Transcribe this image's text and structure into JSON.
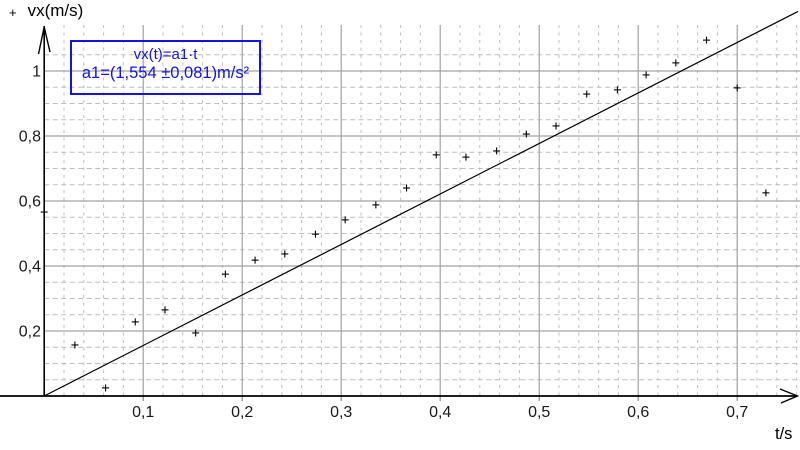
{
  "chart": {
    "y_axis_label": "vx(m/s)",
    "x_axis_label": "t/s",
    "series_marker": "+",
    "legend": {
      "line1": "vx(t)=a1·t",
      "line2": "a1=(1,554 ±0,081)m/s²"
    },
    "colors": {
      "legend_blue": "#1414dd",
      "grid_major": "#a2a2a2",
      "grid_minor": "#bdbdbd",
      "ink": "#000000",
      "tick_text": "#1a1a1a",
      "axis_tick": "#8a8a8a"
    }
  },
  "chart_data": {
    "type": "scatter",
    "title": "",
    "xlabel": "t/s",
    "ylabel": "vx(m/s)",
    "xlim": [
      0,
      0.7636
    ],
    "ylim": [
      0,
      1.142
    ],
    "grid": true,
    "legend_position": "top-left",
    "marker": "plus",
    "x_ticks": {
      "values": [
        0.1,
        0.2,
        0.3,
        0.4,
        0.5,
        0.6,
        0.7
      ],
      "labels": [
        "0,1",
        "0,2",
        "0,3",
        "0,4",
        "0,5",
        "0,6",
        "0,7"
      ]
    },
    "y_ticks": {
      "values": [
        0.2,
        0.4,
        0.6,
        0.8,
        1.0
      ],
      "labels": [
        "0,2",
        "0,4",
        "0,6",
        "0,8",
        "1"
      ]
    },
    "x_minor_step": 0.02,
    "y_minor_step": 0.05,
    "points": [
      [
        0.0,
        0.566
      ],
      [
        0.031,
        0.157
      ],
      [
        0.062,
        0.025
      ],
      [
        0.092,
        0.228
      ],
      [
        0.122,
        0.265
      ],
      [
        0.153,
        0.194
      ],
      [
        0.183,
        0.375
      ],
      [
        0.213,
        0.418
      ],
      [
        0.243,
        0.437
      ],
      [
        0.274,
        0.498
      ],
      [
        0.304,
        0.542
      ],
      [
        0.335,
        0.588
      ],
      [
        0.366,
        0.64
      ],
      [
        0.396,
        0.742
      ],
      [
        0.426,
        0.735
      ],
      [
        0.457,
        0.754
      ],
      [
        0.487,
        0.806
      ],
      [
        0.517,
        0.831
      ],
      [
        0.548,
        0.929
      ],
      [
        0.579,
        0.942
      ],
      [
        0.608,
        0.988
      ],
      [
        0.638,
        1.025
      ],
      [
        0.669,
        1.095
      ],
      [
        0.7,
        0.948
      ],
      [
        0.729,
        0.625
      ]
    ],
    "fit": {
      "type": "linear_through_origin",
      "equation": "vx(t)=a1·t",
      "slope_a1": 1.554,
      "slope_uncertainty": 0.081,
      "slope_units": "m/s²"
    }
  }
}
